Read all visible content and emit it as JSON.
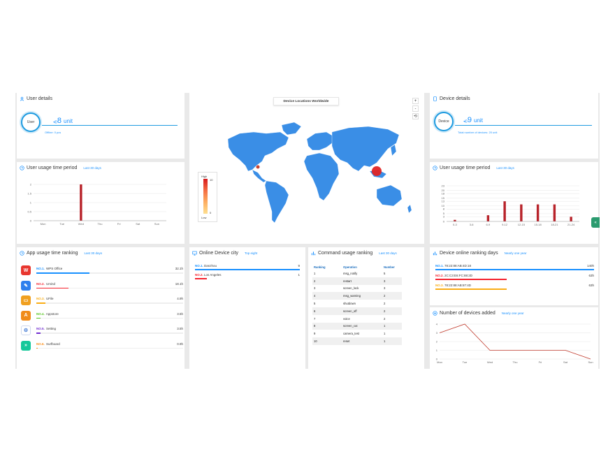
{
  "user_details": {
    "title": "User details",
    "badge": "User",
    "count": "8",
    "unit": "unit",
    "offline": "Offline: 0 pcs"
  },
  "user_usage": {
    "title": "User usage time period",
    "range": "Last 30 days",
    "chart_data": {
      "type": "bar",
      "categories": [
        "Mon",
        "Tue",
        "Wed",
        "Thu",
        "Fri",
        "Sat",
        "Sun"
      ],
      "values": [
        0,
        0,
        2,
        0,
        0,
        0,
        0
      ],
      "yticks": [
        "0",
        "0.5",
        "1",
        "1.5",
        "2"
      ],
      "ylim": [
        0,
        2
      ]
    }
  },
  "map": {
    "title": "Device Locations Worldwide",
    "zoom_in": "+",
    "zoom_out": "-",
    "reset": "⟲",
    "legend_high": "High",
    "legend_low": "Low",
    "legend_max": "10",
    "legend_min": "0",
    "colors": {
      "land": "#3a8ee6",
      "hotspot": "#e02424"
    }
  },
  "device_details": {
    "title": "Device details",
    "badge": "Device",
    "count": "9",
    "unit": "unit",
    "total": "Total number of devices: 20 unit"
  },
  "device_usage": {
    "title": "User usage time period",
    "range": "Last 30 days",
    "chart_data": {
      "type": "bar",
      "categories": [
        "0-3",
        "3-6",
        "6-9",
        "9-12",
        "12-15",
        "15-18",
        "18-21",
        "21-24"
      ],
      "values": [
        1,
        0,
        4,
        13,
        11,
        11,
        11,
        3
      ],
      "yticks": [
        "0",
        "3",
        "5",
        "8",
        "10",
        "13",
        "15",
        "18",
        "20",
        "23"
      ],
      "ylim": [
        0,
        23
      ]
    }
  },
  "app_ranking": {
    "title": "App usage time ranking",
    "range": "Last 30 days",
    "items": [
      {
        "rank": "NO.1.",
        "name": "WPS Office",
        "value": "32.1h",
        "color": "#1890ff",
        "icon_color": "#e8362f",
        "icon": "W",
        "frac": 0.36
      },
      {
        "rank": "NO.2.",
        "name": "Umind",
        "value": "18.1h",
        "color": "#f5222d",
        "icon_color": "#2f80ed",
        "icon": "✎",
        "frac": 0.22
      },
      {
        "rank": "NO.3.",
        "name": "UFile",
        "value": "4.9h",
        "color": "#faad14",
        "icon_color": "#f0a020",
        "icon": "▭",
        "frac": 0.06
      },
      {
        "rank": "NO.4.",
        "name": "Appstore",
        "value": "3.5h",
        "color": "#52c41a",
        "icon_color": "#f08c1a",
        "icon": "A",
        "frac": 0.03
      },
      {
        "rank": "NO.5.",
        "name": "Setting",
        "value": "3.5h",
        "color": "#722ed1",
        "icon_color": "#ffffff",
        "icon": "⚙",
        "frac": 0.03
      },
      {
        "rank": "NO.6.",
        "name": "Surfboard",
        "value": "0.9h",
        "color": "#fa8c16",
        "icon_color": "#16c89a",
        "icon": "»",
        "frac": 0.01
      }
    ]
  },
  "online_city": {
    "title": "Online Device city",
    "range": "Top eight",
    "items": [
      {
        "rank": "NO.1.",
        "name": "Danzhou",
        "value": "9",
        "color": "#1890ff",
        "frac": 1.0
      },
      {
        "rank": "NO.2.",
        "name": "Los Angeles",
        "value": "1",
        "color": "#f5222d",
        "frac": 0.11
      }
    ]
  },
  "command_ranking": {
    "title": "Command usage ranking",
    "range": "Last 30 days",
    "headers": [
      "Ranking",
      "Operation",
      "Number"
    ],
    "rows": [
      [
        "1",
        "msg_notify",
        "5"
      ],
      [
        "2",
        "restart",
        "3"
      ],
      [
        "3",
        "screen_lock",
        "3"
      ],
      [
        "4",
        "msg_warning",
        "2"
      ],
      [
        "5",
        "shutdown",
        "2"
      ],
      [
        "6",
        "screen_off",
        "2"
      ],
      [
        "7",
        "voice",
        "2"
      ],
      [
        "8",
        "screen_cut",
        "1"
      ],
      [
        "9",
        "camera_test",
        "1"
      ],
      [
        "10",
        "reset",
        "1"
      ]
    ]
  },
  "device_online": {
    "title": "Device online ranking days",
    "range": "Nearly one year",
    "items": [
      {
        "rank": "NO.1.",
        "name": "78:22:88:AB:4D:18",
        "value": "140h",
        "color": "#1890ff",
        "frac": 1.0
      },
      {
        "rank": "NO.2.",
        "name": "2C:C3:E6:FC:88:2D",
        "value": "63h",
        "color": "#f5222d",
        "frac": 0.45
      },
      {
        "rank": "NO.3.",
        "name": "78:22:88:AB:87:4D",
        "value": "63h",
        "color": "#faad14",
        "frac": 0.45
      }
    ]
  },
  "devices_added": {
    "title": "Number of devices added",
    "range": "Nearly one year",
    "chart_data": {
      "type": "line",
      "categories": [
        "Mon",
        "Tue",
        "Wed",
        "Thu",
        "Fri",
        "Sat",
        "Sun"
      ],
      "values": [
        3,
        4,
        1,
        1,
        1,
        1,
        0
      ],
      "yticks": [
        "0",
        "1",
        "2",
        "3",
        "4"
      ],
      "ylim": [
        0,
        4
      ]
    }
  },
  "side_tab": {
    "icon": "«"
  }
}
